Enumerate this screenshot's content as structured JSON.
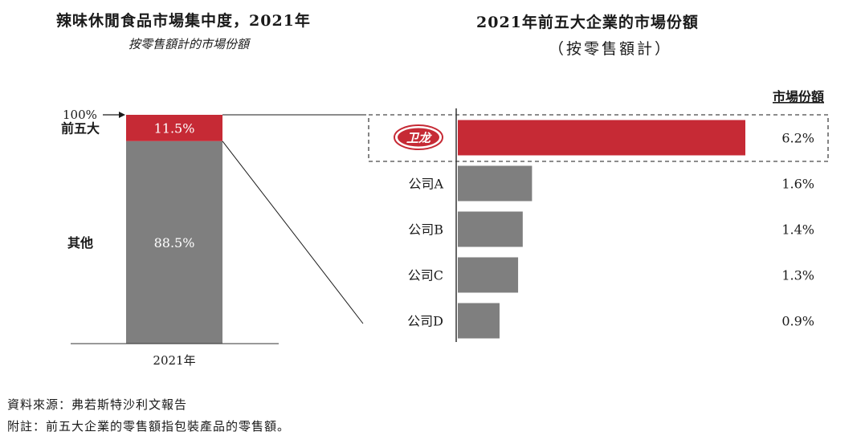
{
  "left_title": "辣味休閒食品市場集中度，2021年",
  "left_subtitle": "按零售額計的市場份額",
  "right_title": "2021年前五大企業的市場份額",
  "right_subtitle": "（按零售額計）",
  "footnotes": {
    "source": "資料來源：弗若斯特沙利文報告",
    "note": "附註：前五大企業的零售額指包裝產品的零售額。"
  },
  "logo_text": "卫龙",
  "colors": {
    "red": "#c62a35",
    "gray": "#7f7f7f",
    "axis": "#333333"
  },
  "chart_data": [
    {
      "type": "bar",
      "stacked": true,
      "title": "辣味休閒食品市場集中度，2021年",
      "categories": [
        "2021年"
      ],
      "top_label": "100%",
      "ylim": [
        0,
        100
      ],
      "series": [
        {
          "name": "其他",
          "values": [
            88.5
          ],
          "label": "88.5%",
          "color": "#7f7f7f"
        },
        {
          "name": "前五大",
          "values": [
            11.5
          ],
          "label": "11.5%",
          "color": "#c62a35"
        }
      ]
    },
    {
      "type": "bar",
      "orientation": "horizontal",
      "title": "2021年前五大企業的市場份額",
      "value_header": "市場份額",
      "xlim": [
        0,
        6.8
      ],
      "categories": [
        "卫龙",
        "公司A",
        "公司B",
        "公司C",
        "公司D"
      ],
      "values": [
        6.2,
        1.6,
        1.4,
        1.3,
        0.9
      ],
      "labels": [
        "6.2%",
        "1.6%",
        "1.4%",
        "1.3%",
        "0.9%"
      ],
      "highlight_index": 0
    }
  ]
}
